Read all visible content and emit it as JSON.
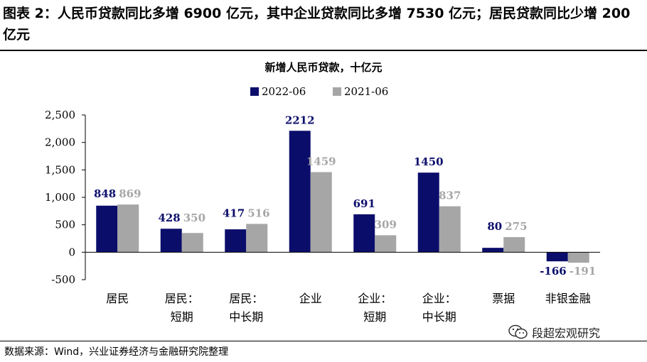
{
  "figure": {
    "title": "图表 2：人民币贷款同比多增 6900 亿元，其中企业贷款同比多增 7530 亿元；居民贷款同比少增 200 亿元",
    "source": "数据来源：Wind，兴业证券经济与金融研究院整理",
    "watermark": "段超宏观研究"
  },
  "chart_data": {
    "type": "bar",
    "title": "新增人民币贷款，十亿元",
    "categories": [
      [
        "居民"
      ],
      [
        "居民：",
        "短期"
      ],
      [
        "居民：",
        "中长期"
      ],
      [
        "企业"
      ],
      [
        "企业：",
        "短期"
      ],
      [
        "企业：",
        "中长期"
      ],
      [
        "票据"
      ],
      [
        "非银金融"
      ]
    ],
    "series": [
      {
        "name": "2022-06",
        "color": "#0b0d6b",
        "label_color": "#0b0d6b",
        "values": [
          848,
          428,
          417,
          2212,
          691,
          1450,
          80,
          -166
        ]
      },
      {
        "name": "2021-06",
        "color": "#a6a6a6",
        "label_color": "#a6a6a6",
        "values": [
          869,
          350,
          516,
          1459,
          309,
          837,
          275,
          -191
        ]
      }
    ],
    "ylim": [
      -500,
      2500
    ],
    "yticks": [
      2500,
      2000,
      1500,
      1000,
      500,
      0,
      -500
    ],
    "ytick_labels": [
      "2,500",
      "2,000",
      "1,500",
      "1,000",
      "500",
      "0",
      "-500"
    ],
    "legend_position": "top",
    "grid": false
  }
}
